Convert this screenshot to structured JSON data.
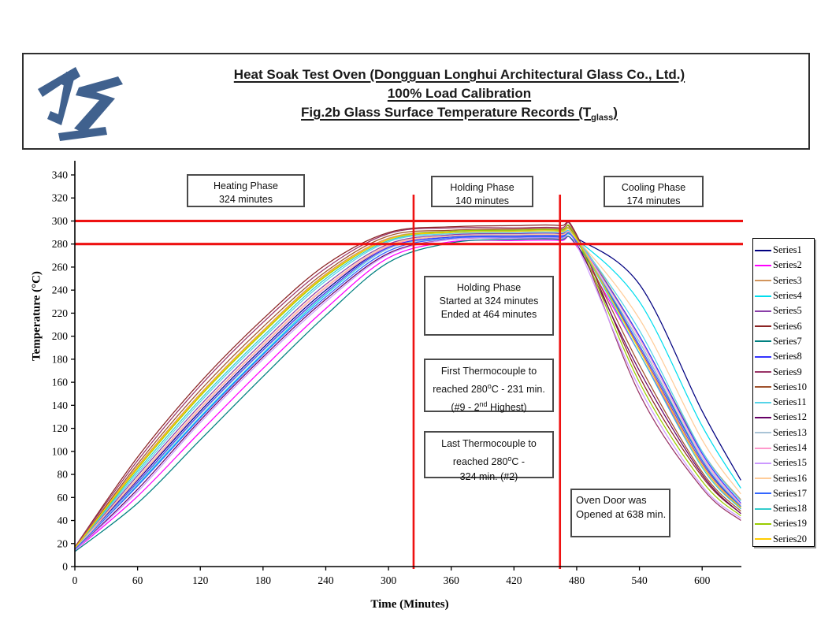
{
  "header": {
    "logo_name": "JAS monogram logo",
    "logo_color": "#40618E",
    "line1": "Heat Soak Test Oven (Dongguan Longhui Architectural Glass Co., Ltd.)",
    "line2": "100% Load Calibration",
    "line3_pre": "Fig.2b Glass Surface Temperature Records (T",
    "line3_sub": "glass",
    "line3_post": ")"
  },
  "annotations": {
    "heating_phase": {
      "line1": "Heating Phase",
      "line2": "324 minutes"
    },
    "holding_phase": {
      "line1": "Holding Phase",
      "line2": "140 minutes"
    },
    "cooling_phase": {
      "line1": "Cooling Phase",
      "line2": "174 minutes"
    },
    "holding_detail": {
      "line1": "Holding Phase",
      "line2": "Started at 324 minutes",
      "line3": "Ended at 464 minutes"
    },
    "first_thermocouple": {
      "line1": "First Thermocouple to",
      "line2_pre": "reached 280",
      "line2_sup": "o",
      "line2_post": "C - 231 min.",
      "line3_pre": "(#9 - 2",
      "line3_sup": "nd",
      "line3_post": " Highest)"
    },
    "last_thermocouple": {
      "line1": "Last Thermocouple to",
      "line2_pre": "reached 280",
      "line2_sup": "o",
      "line2_post": "C -",
      "line3": "324 min. (#2)"
    },
    "oven_door": {
      "line1": "Oven Door was",
      "line2": "Opened at 638 min."
    }
  },
  "chart_data": {
    "type": "line",
    "title": "",
    "xlabel": "Time (Minutes)",
    "ylabel": "Temperature (°C)",
    "xlim": [
      0,
      637
    ],
    "ylim": [
      0,
      340
    ],
    "x_ticks": [
      0,
      60,
      120,
      180,
      240,
      300,
      360,
      420,
      480,
      540,
      600
    ],
    "y_ticks": [
      0,
      20,
      40,
      60,
      80,
      100,
      120,
      140,
      160,
      180,
      200,
      220,
      240,
      260,
      280,
      300,
      320,
      340
    ],
    "grid": false,
    "legend_position": "right-outside",
    "reference_lines": {
      "horizontal_temps_c": [
        300,
        280
      ],
      "vertical_times_min": [
        324,
        464
      ],
      "color": "#EE1111"
    },
    "x": [
      0,
      60,
      120,
      180,
      240,
      300,
      360,
      420,
      464,
      480,
      540,
      600,
      637
    ],
    "series": [
      {
        "name": "Series1",
        "color": "#000080",
        "values": [
          15,
          75,
          135,
          190,
          240,
          278,
          287,
          288,
          288,
          285,
          245,
          135,
          75
        ]
      },
      {
        "name": "Series2",
        "color": "#FF00FF",
        "values": [
          14,
          61,
          117,
          172,
          224,
          268,
          282,
          283,
          283,
          278,
          185,
          88,
          50
        ]
      },
      {
        "name": "Series3",
        "color": "#D2955C",
        "values": [
          16,
          87,
          150,
          205,
          254,
          285,
          291,
          292,
          292,
          286,
          200,
          100,
          58
        ]
      },
      {
        "name": "Series4",
        "color": "#00DDEE",
        "values": [
          15,
          71,
          130,
          185,
          236,
          276,
          286,
          287,
          287,
          284,
          230,
          122,
          68
        ]
      },
      {
        "name": "Series5",
        "color": "#8A3FA8",
        "values": [
          15,
          79,
          140,
          195,
          245,
          280,
          288,
          289,
          289,
          283,
          190,
          90,
          52
        ]
      },
      {
        "name": "Series6",
        "color": "#8B2323",
        "values": [
          17,
          95,
          160,
          215,
          262,
          290,
          295,
          296,
          296,
          288,
          165,
          78,
          46
        ]
      },
      {
        "name": "Series7",
        "color": "#008080",
        "values": [
          13,
          55,
          110,
          165,
          218,
          264,
          281,
          284,
          284,
          279,
          195,
          92,
          52
        ]
      },
      {
        "name": "Series8",
        "color": "#3333FF",
        "values": [
          15,
          73,
          133,
          188,
          238,
          277,
          286,
          287,
          287,
          283,
          200,
          98,
          55
        ]
      },
      {
        "name": "Series9",
        "color": "#993366",
        "values": [
          17,
          92,
          157,
          212,
          259,
          289,
          294,
          294,
          294,
          286,
          150,
          68,
          40
        ]
      },
      {
        "name": "Series10",
        "color": "#A0522D",
        "values": [
          16,
          89,
          153,
          208,
          256,
          287,
          292,
          293,
          293,
          285,
          175,
          82,
          48
        ]
      },
      {
        "name": "Series11",
        "color": "#55D4E8",
        "values": [
          16,
          81,
          143,
          198,
          248,
          282,
          289,
          290,
          290,
          284,
          205,
          100,
          57
        ]
      },
      {
        "name": "Series12",
        "color": "#660066",
        "values": [
          14,
          67,
          127,
          182,
          232,
          272,
          284,
          285,
          285,
          280,
          170,
          80,
          46
        ]
      },
      {
        "name": "Series13",
        "color": "#A9C4D6",
        "values": [
          15,
          72,
          132,
          187,
          237,
          276,
          285,
          286,
          286,
          282,
          195,
          94,
          53
        ]
      },
      {
        "name": "Series14",
        "color": "#FF99CC",
        "values": [
          15,
          76,
          137,
          192,
          242,
          278,
          287,
          288,
          288,
          283,
          198,
          96,
          54
        ]
      },
      {
        "name": "Series15",
        "color": "#CC99FF",
        "values": [
          14,
          65,
          125,
          180,
          230,
          271,
          284,
          285,
          285,
          279,
          155,
          70,
          42
        ]
      },
      {
        "name": "Series16",
        "color": "#FFCC99",
        "values": [
          15,
          77,
          138,
          193,
          243,
          279,
          287,
          288,
          288,
          284,
          215,
          110,
          63
        ]
      },
      {
        "name": "Series17",
        "color": "#3366FF",
        "values": [
          15,
          70,
          129,
          184,
          234,
          274,
          285,
          286,
          286,
          282,
          192,
          92,
          52
        ]
      },
      {
        "name": "Series18",
        "color": "#33CCCC",
        "values": [
          16,
          83,
          145,
          200,
          250,
          283,
          290,
          291,
          291,
          284,
          185,
          86,
          50
        ]
      },
      {
        "name": "Series19",
        "color": "#99CC00",
        "values": [
          16,
          85,
          148,
          203,
          252,
          284,
          291,
          292,
          292,
          285,
          160,
          74,
          44
        ]
      },
      {
        "name": "Series20",
        "color": "#FFCC00",
        "values": [
          16,
          86,
          149,
          204,
          253,
          284,
          290,
          291,
          291,
          284,
          188,
          88,
          51
        ]
      }
    ]
  }
}
